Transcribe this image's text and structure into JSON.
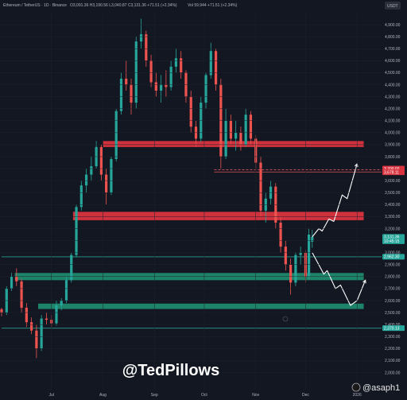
{
  "header": {
    "symbol": "Ethereum / TetherUS · 1D · Binance",
    "ohlc": "O3,091.36  H3,190.56  L3,040.87  C3,131.36  +71.51 (+2.34%)",
    "volume": "Vol 59.944  +71.51 (+2.34%)",
    "currency": "USDT"
  },
  "watermark": "@TedPillows",
  "handle": "@asaph1",
  "colors": {
    "background": "#131722",
    "up": "#26a69a",
    "down": "#ef5350",
    "resistance_zone": "#d9333f",
    "support_zone": "#1f8a6e",
    "arrow": "#ffffff"
  },
  "chart_data": {
    "type": "candlestick",
    "x_ticks": [
      "Jul",
      "Aug",
      "Sep",
      "Oct",
      "Nov",
      "Dec",
      "2026"
    ],
    "y_ticks": [
      "4,900.00",
      "4,800.00",
      "4,700.00",
      "4,600.00",
      "4,500.00",
      "4,400.00",
      "4,300.00",
      "4,200.00",
      "4,100.00",
      "4,000.00",
      "3,900.00",
      "3,800.00",
      "3,700.00",
      "3,600.00",
      "3,500.00",
      "3,400.00",
      "3,300.00",
      "3,200.00",
      "3,100.00",
      "3,000.00",
      "2,900.00",
      "2,800.00",
      "2,700.00",
      "2,600.00",
      "2,500.00",
      "2,400.00",
      "2,300.00",
      "2,200.00",
      "2,100.00",
      "2,000.00"
    ],
    "ylim": [
      1990,
      4960
    ],
    "zones": [
      {
        "kind": "resistance",
        "low": 3880,
        "high": 3930,
        "start": "2025-08-01",
        "end": "2026-01-05"
      },
      {
        "kind": "resistance",
        "low": 3270,
        "high": 3340,
        "start": "2025-07-14",
        "end": "2026-01-05"
      },
      {
        "kind": "support",
        "low": 2770,
        "high": 2830,
        "start": "2025-06-09",
        "end": "2026-01-05"
      },
      {
        "kind": "support",
        "low": 2530,
        "high": 2575,
        "start": "2025-06-23",
        "end": "2026-01-05"
      }
    ],
    "lines": [
      {
        "price": 3690,
        "style": "dashed",
        "start": "2025-10-07"
      },
      {
        "price": 3672,
        "style": "solid",
        "start": "2025-10-07"
      },
      {
        "price": 2965,
        "style": "solid",
        "start": "2025-06-01"
      },
      {
        "price": 2370,
        "style": "solid",
        "start": "2025-06-01"
      }
    ],
    "price_tags": [
      {
        "price": 3700,
        "text": "3,700.02",
        "color": "#d9333f"
      },
      {
        "price": 3670,
        "text": "3,678.11",
        "color": "#d9333f"
      },
      {
        "price": 3131.36,
        "text": "3,131.36",
        "color": "#26a69a"
      },
      {
        "price": 3095,
        "text": "10:45:15",
        "color": "#26a69a"
      },
      {
        "price": 2965,
        "text": "2,962.30",
        "color": "#26a69a"
      },
      {
        "price": 2370,
        "text": "2,370.13",
        "color": "#26a69a"
      }
    ],
    "projections": [
      [
        [
          "2025-12-05",
          3131
        ],
        [
          "2025-12-09",
          3200
        ],
        [
          "2025-12-11",
          3180
        ],
        [
          "2025-12-15",
          3280
        ],
        [
          "2025-12-18",
          3260
        ],
        [
          "2025-12-23",
          3480
        ],
        [
          "2025-12-26",
          3450
        ],
        [
          "2026-01-01",
          3740
        ]
      ],
      [
        [
          "2025-12-05",
          3000
        ],
        [
          "2025-12-12",
          2820
        ],
        [
          "2025-12-14",
          2850
        ],
        [
          "2025-12-19",
          2700
        ],
        [
          "2025-12-22",
          2730
        ],
        [
          "2025-12-28",
          2560
        ],
        [
          "2026-01-01",
          2600
        ],
        [
          "2026-01-06",
          2770
        ]
      ]
    ],
    "candles": [
      [
        "2025-06-01",
        2528,
        2540,
        2470,
        2500
      ],
      [
        "2025-06-04",
        2500,
        2720,
        2480,
        2700
      ],
      [
        "2025-06-07",
        2700,
        2830,
        2680,
        2800
      ],
      [
        "2025-06-10",
        2800,
        2870,
        2720,
        2760
      ],
      [
        "2025-06-13",
        2760,
        2780,
        2500,
        2540
      ],
      [
        "2025-06-16",
        2540,
        2580,
        2380,
        2420
      ],
      [
        "2025-06-19",
        2420,
        2460,
        2320,
        2350
      ],
      [
        "2025-06-22",
        2350,
        2400,
        2120,
        2200
      ],
      [
        "2025-06-25",
        2200,
        2480,
        2180,
        2450
      ],
      [
        "2025-06-28",
        2450,
        2500,
        2400,
        2440
      ],
      [
        "2025-07-01",
        2440,
        2480,
        2380,
        2410
      ],
      [
        "2025-07-04",
        2410,
        2600,
        2390,
        2560
      ],
      [
        "2025-07-07",
        2560,
        2620,
        2520,
        2600
      ],
      [
        "2025-07-10",
        2600,
        2800,
        2580,
        2770
      ],
      [
        "2025-07-13",
        2770,
        3000,
        2750,
        2980
      ],
      [
        "2025-07-16",
        2980,
        3400,
        2960,
        3380
      ],
      [
        "2025-07-19",
        3380,
        3600,
        3350,
        3560
      ],
      [
        "2025-07-22",
        3560,
        3700,
        3500,
        3650
      ],
      [
        "2025-07-25",
        3650,
        3800,
        3600,
        3720
      ],
      [
        "2025-07-28",
        3720,
        3930,
        3700,
        3880
      ],
      [
        "2025-07-31",
        3880,
        3900,
        3600,
        3650
      ],
      [
        "2025-08-03",
        3650,
        3700,
        3400,
        3500
      ],
      [
        "2025-08-06",
        3500,
        3800,
        3480,
        3780
      ],
      [
        "2025-08-09",
        3780,
        4200,
        3760,
        4180
      ],
      [
        "2025-08-12",
        4180,
        4500,
        4150,
        4450
      ],
      [
        "2025-08-15",
        4450,
        4600,
        4350,
        4400
      ],
      [
        "2025-08-18",
        4400,
        4450,
        4150,
        4250
      ],
      [
        "2025-08-21",
        4250,
        4800,
        4200,
        4760
      ],
      [
        "2025-08-24",
        4760,
        4950,
        4700,
        4820
      ],
      [
        "2025-08-27",
        4820,
        4850,
        4550,
        4600
      ],
      [
        "2025-08-30",
        4600,
        4650,
        4380,
        4420
      ],
      [
        "2025-09-02",
        4420,
        4500,
        4300,
        4350
      ],
      [
        "2025-09-05",
        4350,
        4480,
        4250,
        4400
      ],
      [
        "2025-09-08",
        4400,
        4520,
        4300,
        4380
      ],
      [
        "2025-09-11",
        4380,
        4600,
        4350,
        4550
      ],
      [
        "2025-09-14",
        4550,
        4700,
        4500,
        4620
      ],
      [
        "2025-09-17",
        4620,
        4680,
        4450,
        4500
      ],
      [
        "2025-09-20",
        4500,
        4520,
        4250,
        4300
      ],
      [
        "2025-09-23",
        4300,
        4350,
        4000,
        4050
      ],
      [
        "2025-09-26",
        4050,
        4100,
        3880,
        3950
      ],
      [
        "2025-09-29",
        3950,
        4300,
        3920,
        4250
      ],
      [
        "2025-10-02",
        4250,
        4500,
        4200,
        4480
      ],
      [
        "2025-10-05",
        4480,
        4750,
        4450,
        4680
      ],
      [
        "2025-10-08",
        4680,
        4700,
        4350,
        4400
      ],
      [
        "2025-10-11",
        4400,
        4450,
        3700,
        3800
      ],
      [
        "2025-10-14",
        3800,
        4200,
        3780,
        4100
      ],
      [
        "2025-10-17",
        4100,
        4150,
        3900,
        3950
      ],
      [
        "2025-10-20",
        3950,
        4100,
        3850,
        4000
      ],
      [
        "2025-10-23",
        4000,
        4050,
        3850,
        3900
      ],
      [
        "2025-10-26",
        3900,
        4200,
        3880,
        4150
      ],
      [
        "2025-10-29",
        4150,
        4180,
        3900,
        3950
      ],
      [
        "2025-11-01",
        3950,
        3980,
        3700,
        3750
      ],
      [
        "2025-11-04",
        3750,
        3800,
        3300,
        3350
      ],
      [
        "2025-11-07",
        3350,
        3500,
        3250,
        3450
      ],
      [
        "2025-11-10",
        3450,
        3600,
        3400,
        3550
      ],
      [
        "2025-11-13",
        3550,
        3580,
        3200,
        3250
      ],
      [
        "2025-11-16",
        3250,
        3300,
        3000,
        3050
      ],
      [
        "2025-11-19",
        3050,
        3100,
        2850,
        2900
      ],
      [
        "2025-11-22",
        2900,
        2950,
        2650,
        2750
      ],
      [
        "2025-11-25",
        2750,
        3000,
        2720,
        2980
      ],
      [
        "2025-11-28",
        2980,
        3050,
        2900,
        3000
      ],
      [
        "2025-12-01",
        3000,
        3020,
        2750,
        2800
      ],
      [
        "2025-12-03",
        2800,
        3200,
        2780,
        3150
      ],
      [
        "2025-12-05",
        3091,
        3190,
        3040,
        3131
      ]
    ]
  }
}
